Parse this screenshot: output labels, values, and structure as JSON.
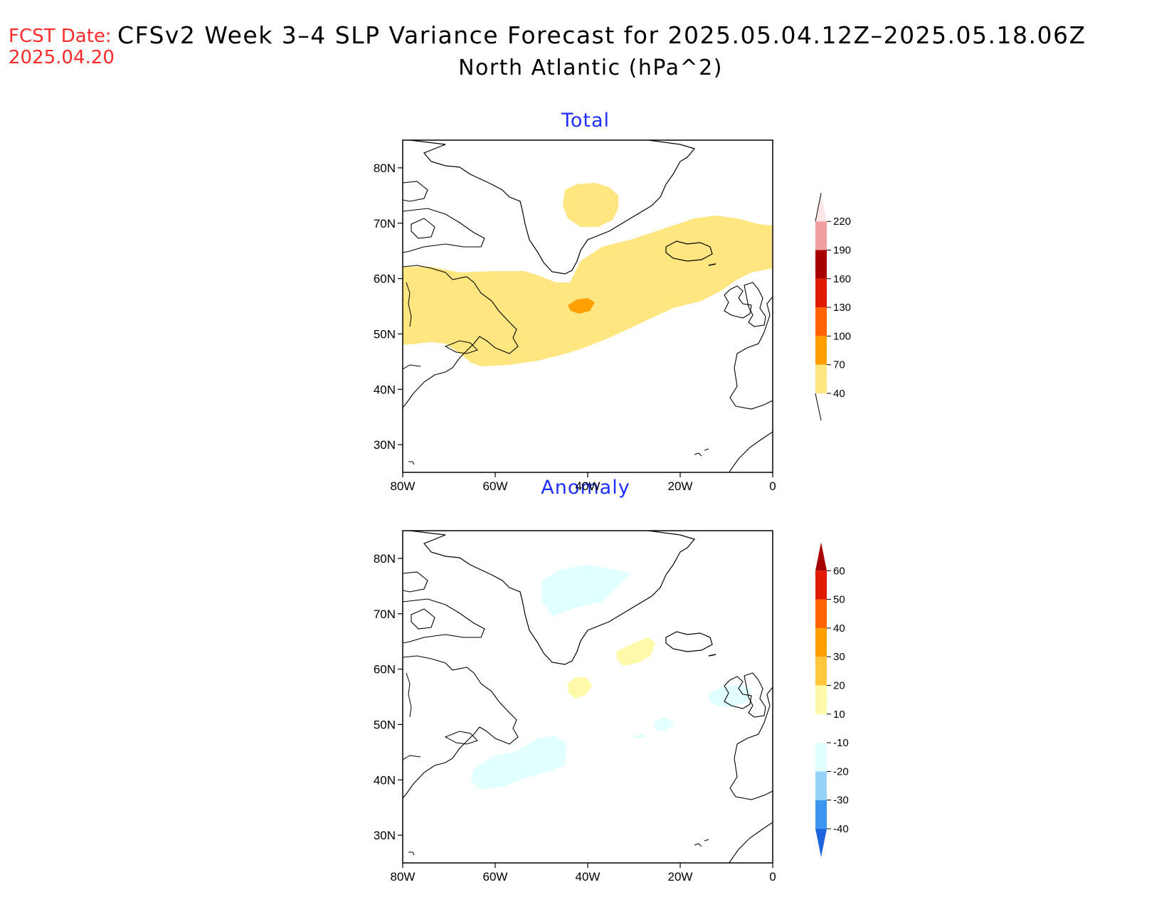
{
  "header": {
    "fcst_label": "FCST Date:",
    "fcst_date": "2025.04.20",
    "title": "CFSv2 Week 3–4 SLP Variance Forecast for 2025.05.04.12Z–2025.05.18.06Z",
    "subtitle": "North Atlantic (hPa^2)"
  },
  "map": {
    "lon_ticks": [
      "80W",
      "60W",
      "40W",
      "20W",
      "0"
    ],
    "lat_ticks": [
      "80N",
      "70N",
      "60N",
      "50N",
      "40N",
      "30N"
    ],
    "lon_range": [
      -80,
      0
    ],
    "lat_range": [
      25,
      85
    ]
  },
  "panels": [
    {
      "title": "Total",
      "colorbar": {
        "labels": [
          "40",
          "70",
          "100",
          "130",
          "160",
          "190",
          "220"
        ],
        "colors": [
          "#ffe680",
          "#ffa000",
          "#ff6400",
          "#e01a00",
          "#a80000",
          "#f0a0a0",
          "#ffe6e6"
        ]
      },
      "shaded_regions": [
        {
          "level": "40-70",
          "description": "band from Labrador/Newfoundland across mid-Atlantic to Iceland region; patch over east Greenland"
        },
        {
          "level": "70-100",
          "description": "small patch near 55N 40W"
        }
      ]
    },
    {
      "title": "Anomaly",
      "colorbar": {
        "labels": [
          "-40",
          "-30",
          "-20",
          "-10",
          "10",
          "20",
          "30",
          "40",
          "50",
          "60"
        ],
        "colors": [
          "#1e64dc",
          "#3c96f0",
          "#96d2fa",
          "#e1ffff",
          "#ffffff",
          "#fffaaa",
          "#ffc83c",
          "#ffa000",
          "#ff6400",
          "#e01a00",
          "#a80000"
        ]
      },
      "shaded_regions": [
        {
          "level": "-20 to -10",
          "description": "patches over east Greenland, off US east coast, west of Ireland, mid-Atlantic"
        },
        {
          "level": "10 to 20",
          "description": "patches south of Greenland and SW of Iceland"
        }
      ]
    }
  ]
}
